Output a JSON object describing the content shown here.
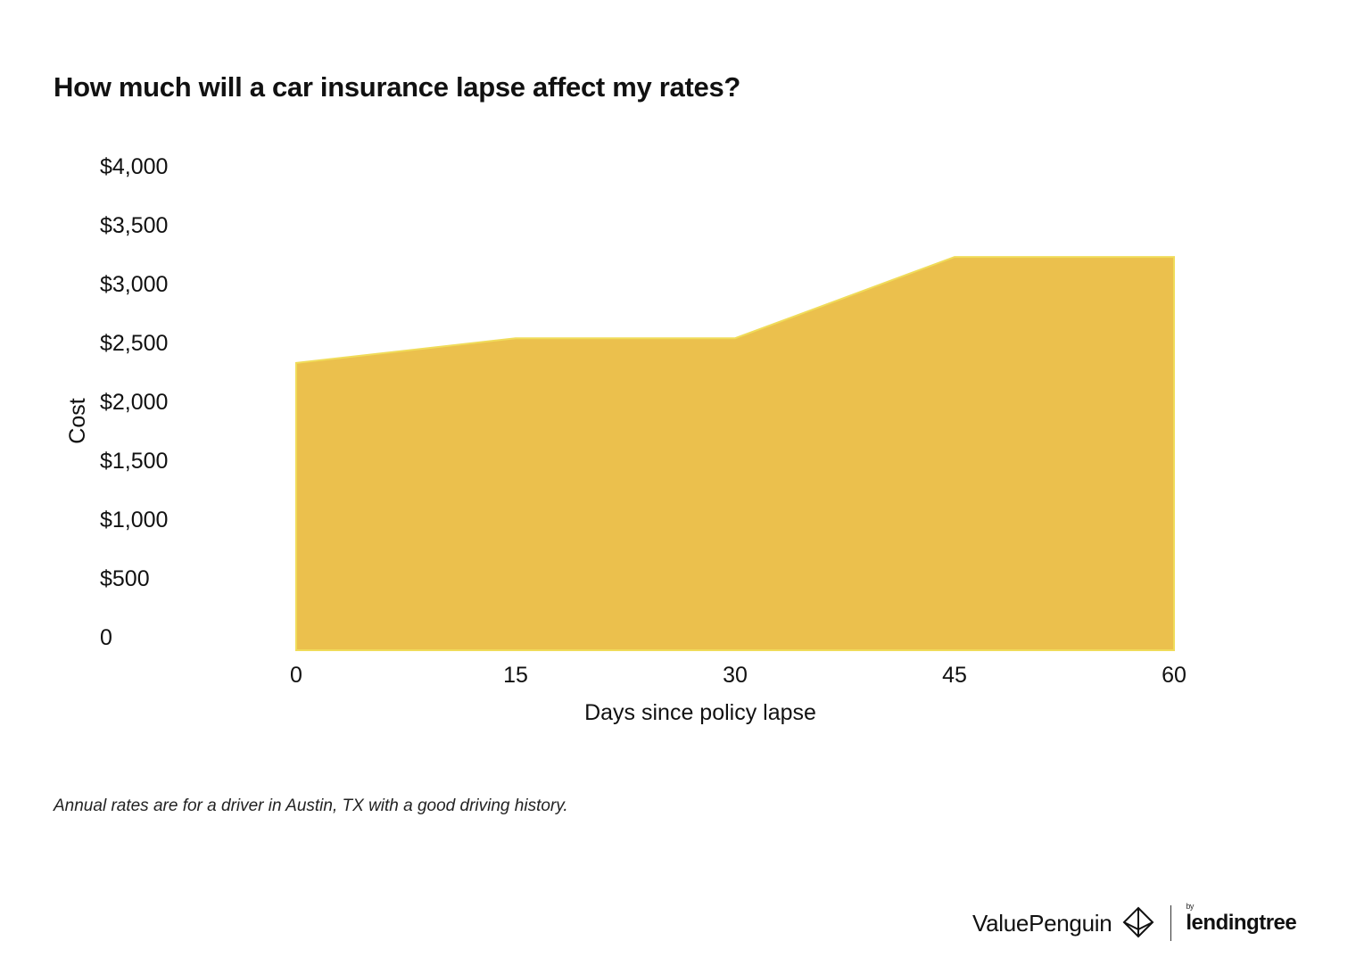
{
  "title": "How much will a car insurance lapse affect my rates?",
  "footnote": "Annual rates are for a driver in Austin, TX with a good driving history.",
  "branding": {
    "valuepenguin": "ValuePenguin",
    "valuepenguin_icon": "diamond-logo-icon",
    "lendingtree_by": "by",
    "lendingtree": "lendingtree"
  },
  "colors": {
    "area_fill": "#EBC04D",
    "area_edge": "#F0DC5A",
    "text": "#111111"
  },
  "chart_data": {
    "type": "area",
    "x": [
      0,
      15,
      30,
      45,
      60
    ],
    "values": [
      2440,
      2650,
      2650,
      3340,
      3340
    ],
    "xlabel": "Days since policy lapse",
    "ylabel": "Cost",
    "x_ticks": [
      "0",
      "15",
      "30",
      "45",
      "60"
    ],
    "y_ticks": [
      "$4,000",
      "$3,500",
      "$3,000",
      "$2,500",
      "$2,000",
      "$1,500",
      "$1,000",
      "$500",
      "0"
    ],
    "y_tick_values": [
      4000,
      3500,
      3000,
      2500,
      2000,
      1500,
      1000,
      500,
      0
    ],
    "xlim": [
      0,
      60
    ],
    "ylim": [
      0,
      4000
    ],
    "grid": false,
    "legend": "none"
  }
}
